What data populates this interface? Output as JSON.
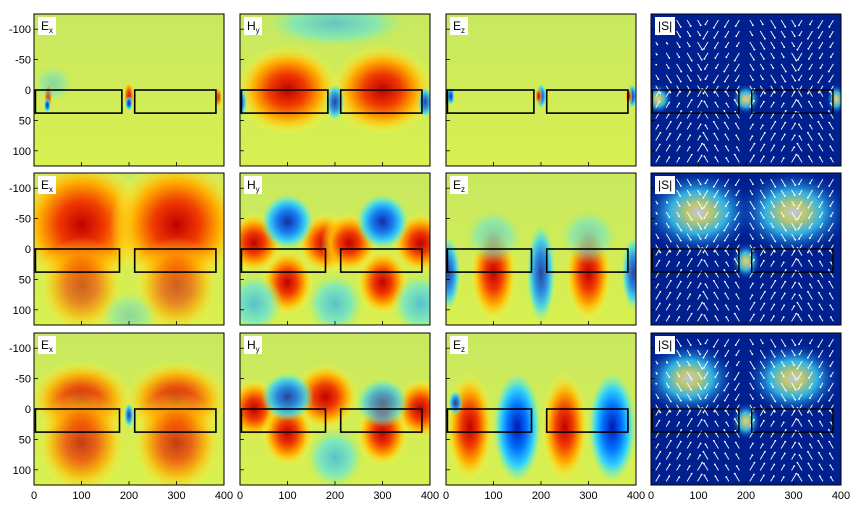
{
  "figure": {
    "y_ticks": [
      "-100",
      "-50",
      "0",
      "50",
      "100"
    ],
    "x_ticks": [
      "0",
      "100",
      "200",
      "300",
      "400"
    ],
    "columns": [
      {
        "label_main": "E",
        "label_sub": "x"
      },
      {
        "label_main": "H",
        "label_sub": "y"
      },
      {
        "label_main": "E",
        "label_sub": "z"
      },
      {
        "label_main": "|S|",
        "label_sub": ""
      }
    ],
    "rows": 3,
    "colors": {
      "background_field": "#c8e85a",
      "hot": "#d81e05",
      "cold": "#1a4fd8",
      "poynting_bg": "#00208f",
      "arrow": "#ffffff",
      "outline": "#000000"
    }
  }
}
